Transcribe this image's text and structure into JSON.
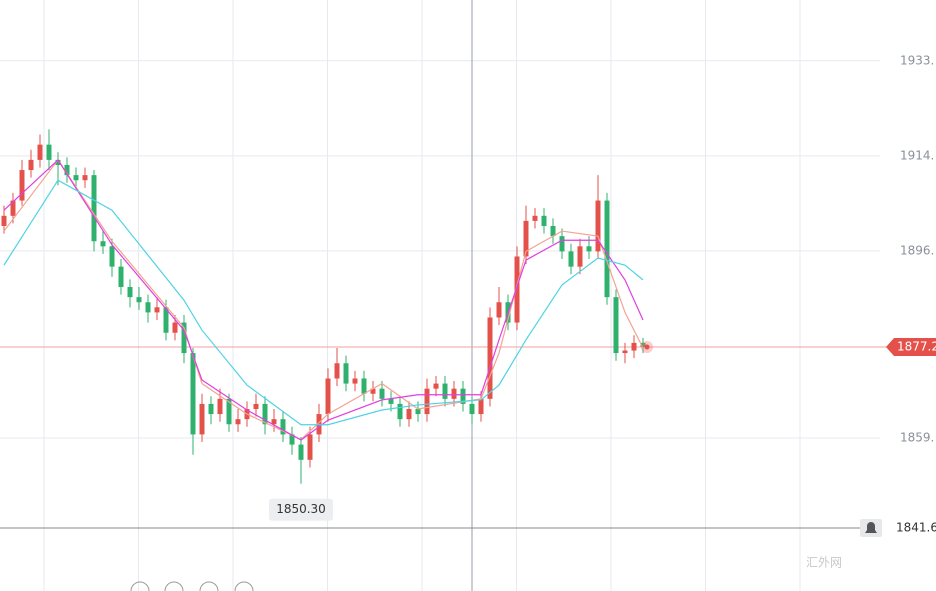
{
  "chart_data": {
    "type": "candlestick",
    "ylim": [
      1829.2,
      1945.45
    ],
    "yticks": [
      {
        "value": 1933.5,
        "label": "1933."
      },
      {
        "value": 1914.8,
        "label": "1914."
      },
      {
        "value": 1896.1,
        "label": "1896."
      },
      {
        "value": 1859.3,
        "label": "1859."
      }
    ],
    "grid": true,
    "up_color": "#e4514a",
    "down_color": "#2fb06c",
    "ohlc": [
      [
        1901,
        1905,
        1899.5,
        1903
      ],
      [
        1903,
        1907.5,
        1901.5,
        1906
      ],
      [
        1906,
        1914,
        1905,
        1912
      ],
      [
        1912,
        1916,
        1910.5,
        1914
      ],
      [
        1914,
        1919,
        1912.5,
        1917
      ],
      [
        1917,
        1920,
        1912,
        1914
      ],
      [
        1914,
        1915.5,
        1909,
        1913
      ],
      [
        1913,
        1914.5,
        1909.5,
        1911
      ],
      [
        1911,
        1912.5,
        1908.5,
        1910
      ],
      [
        1910,
        1912.5,
        1908.5,
        1911
      ],
      [
        1911,
        1912,
        1896,
        1898
      ],
      [
        1898,
        1900,
        1895.5,
        1897
      ],
      [
        1897,
        1898.5,
        1891,
        1893
      ],
      [
        1893,
        1894.5,
        1887.5,
        1889
      ],
      [
        1889,
        1890.5,
        1885,
        1887
      ],
      [
        1887,
        1889,
        1884.5,
        1886
      ],
      [
        1886,
        1887.5,
        1882,
        1884
      ],
      [
        1884,
        1887,
        1882.5,
        1885
      ],
      [
        1885,
        1886.5,
        1878.5,
        1880
      ],
      [
        1880,
        1883.5,
        1878.5,
        1882
      ],
      [
        1882,
        1883.5,
        1874,
        1876
      ],
      [
        1876,
        1877,
        1856,
        1860
      ],
      [
        1860,
        1868,
        1858.5,
        1866
      ],
      [
        1866,
        1867.5,
        1862,
        1864
      ],
      [
        1864,
        1869,
        1862.5,
        1867
      ],
      [
        1867,
        1868,
        1860.5,
        1862
      ],
      [
        1862,
        1865,
        1860.5,
        1863
      ],
      [
        1863,
        1866.5,
        1861.5,
        1865
      ],
      [
        1865,
        1868,
        1863.5,
        1866
      ],
      [
        1866,
        1867.5,
        1860,
        1862
      ],
      [
        1862,
        1865,
        1860.5,
        1863
      ],
      [
        1863,
        1864.5,
        1858.5,
        1860
      ],
      [
        1860,
        1861.5,
        1856,
        1858
      ],
      [
        1858,
        1859.5,
        1850.3,
        1855
      ],
      [
        1855,
        1861.5,
        1853.5,
        1860
      ],
      [
        1860,
        1866,
        1858.5,
        1864
      ],
      [
        1864,
        1873,
        1862.5,
        1871
      ],
      [
        1871,
        1877,
        1869.5,
        1874
      ],
      [
        1874,
        1875.5,
        1868.5,
        1870
      ],
      [
        1870,
        1872.5,
        1868.5,
        1871
      ],
      [
        1871,
        1872.5,
        1866.5,
        1868
      ],
      [
        1868,
        1870.5,
        1866.5,
        1869
      ],
      [
        1869,
        1870.5,
        1865.5,
        1867
      ],
      [
        1867,
        1868.5,
        1864.5,
        1866
      ],
      [
        1866,
        1867.5,
        1861.5,
        1863
      ],
      [
        1863,
        1866.5,
        1861.5,
        1865
      ],
      [
        1865,
        1866.5,
        1862.5,
        1864
      ],
      [
        1864,
        1871,
        1862.5,
        1869
      ],
      [
        1869,
        1871.5,
        1867.5,
        1870
      ],
      [
        1870,
        1871.5,
        1865.5,
        1867
      ],
      [
        1867,
        1870.5,
        1865.5,
        1869
      ],
      [
        1869,
        1870.5,
        1864.5,
        1866
      ],
      [
        1866,
        1867.5,
        1862,
        1864
      ],
      [
        1864,
        1868.5,
        1862.5,
        1867
      ],
      [
        1867,
        1885,
        1865.5,
        1883
      ],
      [
        1883,
        1889,
        1881.5,
        1886
      ],
      [
        1886,
        1887.5,
        1880.5,
        1882
      ],
      [
        1882,
        1897,
        1880.5,
        1895
      ],
      [
        1895,
        1905,
        1893.5,
        1902
      ],
      [
        1902,
        1904.5,
        1900.5,
        1903
      ],
      [
        1903,
        1904.5,
        1899.5,
        1901
      ],
      [
        1901,
        1902.5,
        1897.5,
        1899
      ],
      [
        1899,
        1900.5,
        1894.5,
        1896
      ],
      [
        1896,
        1897.5,
        1891.5,
        1893
      ],
      [
        1893,
        1898.5,
        1891.5,
        1897
      ],
      [
        1897,
        1899,
        1894.5,
        1896
      ],
      [
        1896,
        1911,
        1894.5,
        1906
      ],
      [
        1906,
        1907.5,
        1885.5,
        1887
      ],
      [
        1887,
        1888.5,
        1874.5,
        1876
      ],
      [
        1876,
        1878,
        1874,
        1876.5
      ],
      [
        1876.5,
        1879.5,
        1875,
        1878
      ],
      [
        1878,
        1879,
        1876,
        1877.2
      ]
    ],
    "lines": [
      {
        "color": "#f2a393",
        "x": [
          0,
          6,
          12,
          20,
          22,
          27,
          33,
          36,
          42,
          46,
          53,
          55,
          58,
          62,
          66,
          69,
          71
        ],
        "values": [
          1900,
          1914,
          1898,
          1881,
          1870,
          1864,
          1859,
          1864,
          1870,
          1865,
          1867,
          1876,
          1896,
          1900,
          1899,
          1884,
          1877
        ]
      },
      {
        "color": "#e23ee0",
        "x": [
          0,
          6,
          12,
          20,
          22,
          27,
          33,
          36,
          42,
          46,
          53,
          55,
          58,
          62,
          66,
          69,
          71
        ],
        "values": [
          1904.1,
          1914.0,
          1897.3,
          1880.5,
          1870.7,
          1864.8,
          1858.9,
          1862.8,
          1866.8,
          1867.8,
          1867.8,
          1878.6,
          1894.3,
          1898.2,
          1898.2,
          1890.4,
          1882.5
        ]
      },
      {
        "color": "#4fd3e3",
        "x": [
          0,
          6,
          12,
          20,
          22,
          27,
          33,
          36,
          42,
          46,
          53,
          55,
          58,
          62,
          66,
          69,
          71
        ],
        "values": [
          1893.3,
          1910.0,
          1904.1,
          1886.4,
          1880.5,
          1869.7,
          1861.9,
          1861.9,
          1864.8,
          1865.8,
          1866.8,
          1869.7,
          1878.6,
          1889.4,
          1894.7,
          1893.3,
          1890.4
        ]
      }
    ],
    "current_price": 1877.2,
    "alert_price": 1841.6,
    "annotations": [
      {
        "value": 1850.3,
        "label": "1850.30"
      }
    ],
    "watermark": "汇外网"
  }
}
